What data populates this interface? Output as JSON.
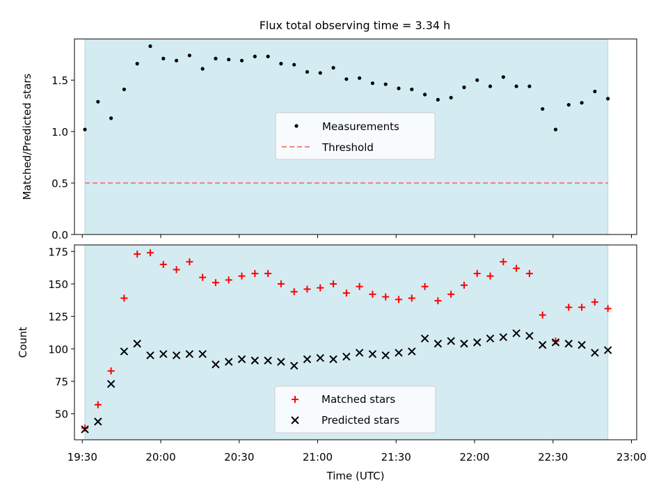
{
  "title": "Flux total observing time = 3.34 h",
  "colors": {
    "band": "#d4ebf2",
    "band_edge": "#add8e6",
    "measurement": "#000000",
    "threshold": "#f08080",
    "matched": "#ff0000",
    "predicted": "#000000"
  },
  "chart_data": [
    {
      "type": "scatter",
      "panel": "top",
      "xlabel": "",
      "ylabel": "Matched/Predicted stars",
      "xlim": [
        "19:27",
        "23:02"
      ],
      "ylim": [
        0,
        1.9
      ],
      "yticks": [
        "0.0",
        "0.5",
        "1.0",
        "1.5"
      ],
      "ytick_values": [
        0,
        0.5,
        1.0,
        1.5
      ],
      "observing_span": [
        "19:31",
        "22:51"
      ],
      "legend": {
        "placement": "center",
        "entries": [
          "Measurements",
          "Threshold"
        ]
      },
      "series": [
        {
          "name": "Measurements",
          "marker": "dot",
          "x": [
            "19:31",
            "19:36",
            "19:41",
            "19:46",
            "19:51",
            "19:56",
            "20:01",
            "20:06",
            "20:11",
            "20:16",
            "20:21",
            "20:26",
            "20:31",
            "20:36",
            "20:41",
            "20:46",
            "20:51",
            "20:56",
            "21:01",
            "21:06",
            "21:11",
            "21:16",
            "21:21",
            "21:26",
            "21:31",
            "21:36",
            "21:41",
            "21:46",
            "21:51",
            "21:56",
            "22:01",
            "22:06",
            "22:11",
            "22:16",
            "22:21",
            "22:26",
            "22:31",
            "22:36",
            "22:41",
            "22:46",
            "22:51"
          ],
          "y": [
            1.02,
            1.29,
            1.13,
            1.41,
            1.66,
            1.83,
            1.71,
            1.69,
            1.74,
            1.61,
            1.71,
            1.7,
            1.69,
            1.73,
            1.73,
            1.66,
            1.65,
            1.58,
            1.57,
            1.62,
            1.51,
            1.52,
            1.47,
            1.46,
            1.42,
            1.41,
            1.36,
            1.31,
            1.33,
            1.43,
            1.5,
            1.44,
            1.53,
            1.44,
            1.44,
            1.22,
            1.02,
            1.26,
            1.28,
            1.39,
            1.32
          ]
        },
        {
          "name": "Threshold",
          "marker": "dashed-line",
          "x": [
            "19:31",
            "22:51"
          ],
          "y": [
            0.5,
            0.5
          ]
        }
      ]
    },
    {
      "type": "scatter",
      "panel": "bottom",
      "xlabel": "Time (UTC)",
      "ylabel": "Count",
      "xlim": [
        "19:27",
        "23:02"
      ],
      "ylim": [
        30,
        180
      ],
      "yticks": [
        "50",
        "75",
        "100",
        "125",
        "150",
        "175"
      ],
      "ytick_values": [
        50,
        75,
        100,
        125,
        150,
        175
      ],
      "xticks": [
        "19:30",
        "20:00",
        "20:30",
        "21:00",
        "21:30",
        "22:00",
        "22:30",
        "23:00"
      ],
      "observing_span": [
        "19:31",
        "22:51"
      ],
      "legend": {
        "placement": "lower center",
        "entries": [
          "Matched stars",
          "Predicted stars"
        ]
      },
      "x": [
        "19:31",
        "19:36",
        "19:41",
        "19:46",
        "19:51",
        "19:56",
        "20:01",
        "20:06",
        "20:11",
        "20:16",
        "20:21",
        "20:26",
        "20:31",
        "20:36",
        "20:41",
        "20:46",
        "20:51",
        "20:56",
        "21:01",
        "21:06",
        "21:11",
        "21:16",
        "21:21",
        "21:26",
        "21:31",
        "21:36",
        "21:41",
        "21:46",
        "21:51",
        "21:56",
        "22:01",
        "22:06",
        "22:11",
        "22:16",
        "22:21",
        "22:26",
        "22:31",
        "22:36",
        "22:41",
        "22:46",
        "22:51"
      ],
      "series": [
        {
          "name": "Matched stars",
          "marker": "plus",
          "values": [
            39,
            57,
            83,
            139,
            173,
            174,
            165,
            161,
            167,
            155,
            151,
            153,
            156,
            158,
            158,
            150,
            144,
            146,
            147,
            150,
            143,
            148,
            142,
            140,
            138,
            139,
            148,
            137,
            142,
            149,
            158,
            156,
            167,
            162,
            158,
            126,
            106,
            132,
            132,
            136,
            131
          ]
        },
        {
          "name": "Predicted stars",
          "marker": "x",
          "values": [
            38,
            44,
            73,
            98,
            104,
            95,
            96,
            95,
            96,
            96,
            88,
            90,
            92,
            91,
            91,
            90,
            87,
            92,
            93,
            92,
            94,
            97,
            96,
            95,
            97,
            98,
            108,
            104,
            106,
            104,
            105,
            108,
            109,
            112,
            110,
            103,
            105,
            104,
            103,
            97,
            99
          ]
        }
      ]
    }
  ]
}
